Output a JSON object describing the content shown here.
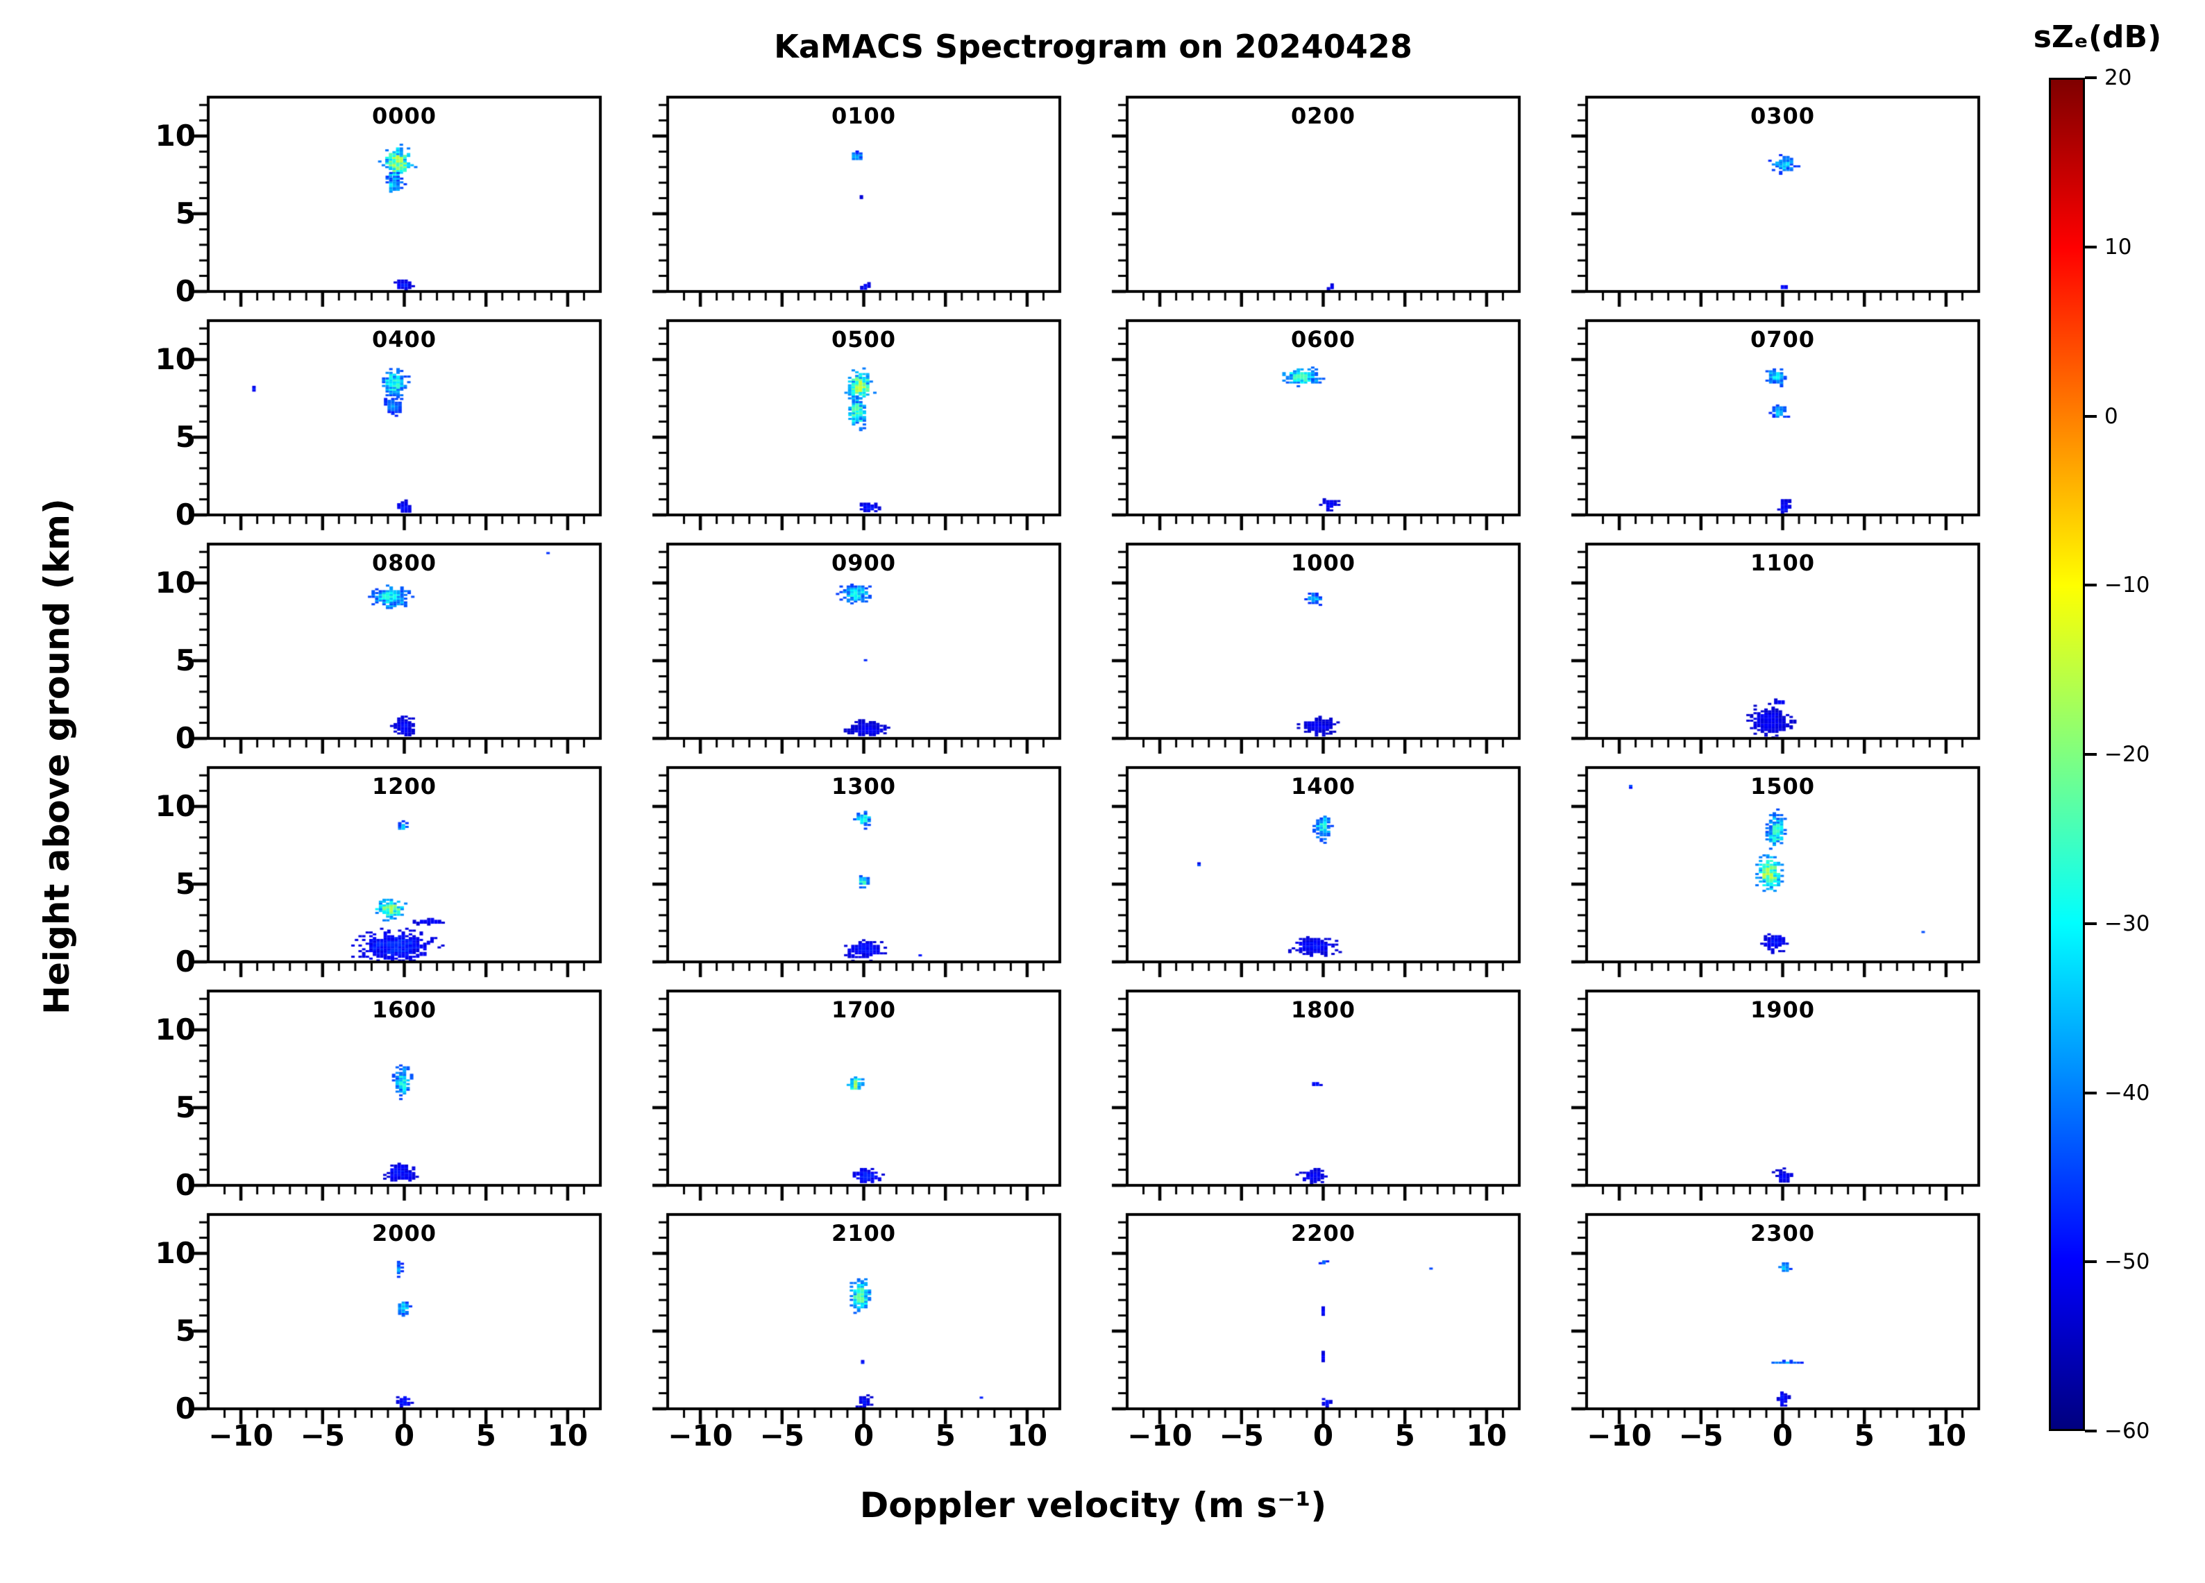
{
  "title": "KaMACS Spectrogram on 20240428",
  "axes": {
    "xlabel": "Doppler velocity (m s⁻¹)",
    "ylabel": "Height above ground (km)",
    "xlim": [
      -12,
      12
    ],
    "ylim": [
      0,
      12.5
    ],
    "xticks": [
      "−10",
      "−5",
      "0",
      "5",
      "10"
    ],
    "xtick_values": [
      -10,
      -5,
      0,
      5,
      10
    ],
    "xminor_step": 1,
    "yticks": [
      "10",
      "5",
      "0"
    ],
    "ytick_values": [
      10,
      5,
      0
    ],
    "yminor_step": 1
  },
  "colorbar": {
    "label": "sZₑ(dB)",
    "min": -60,
    "max": 20,
    "ticks": [
      "20",
      "10",
      "0",
      "−10",
      "−20",
      "−30",
      "−40",
      "−50",
      "−60"
    ],
    "tick_values": [
      20,
      10,
      0,
      -10,
      -20,
      -30,
      -40,
      -50,
      -60
    ],
    "colormap": "jet",
    "stops": [
      [
        0,
        "#00007f"
      ],
      [
        0.125,
        "#0000ff"
      ],
      [
        0.375,
        "#00ffff"
      ],
      [
        0.625,
        "#ffff00"
      ],
      [
        0.875,
        "#ff0000"
      ],
      [
        1,
        "#7f0000"
      ]
    ]
  },
  "chart_data": {
    "type": "heatmap",
    "grid": {
      "rows": 6,
      "cols": 4
    },
    "units": {
      "x": "m s⁻¹",
      "y": "km",
      "z": "dB"
    },
    "blob_format": [
      "velocity_center_ms",
      "height_center_km",
      "velocity_sigma_ms",
      "height_sigma_km",
      "peak_dB"
    ],
    "panels": [
      {
        "label": "0000",
        "blobs": [
          [
            -0.4,
            8.3,
            0.8,
            0.9,
            -15
          ],
          [
            -0.6,
            6.9,
            0.5,
            0.6,
            -30
          ],
          [
            0.0,
            0.4,
            0.45,
            0.3,
            -47
          ]
        ]
      },
      {
        "label": "0100",
        "blobs": [
          [
            -0.4,
            8.7,
            0.4,
            0.3,
            -36
          ],
          [
            -0.1,
            6.1,
            0.12,
            0.15,
            -50
          ],
          [
            0.1,
            0.3,
            0.3,
            0.22,
            -48
          ]
        ]
      },
      {
        "label": "0200",
        "blobs": [
          [
            0.5,
            0.25,
            0.28,
            0.18,
            -50
          ]
        ]
      },
      {
        "label": "0300",
        "blobs": [
          [
            0.1,
            8.2,
            0.7,
            0.45,
            -31
          ],
          [
            0.1,
            0.3,
            0.25,
            0.2,
            -48
          ]
        ]
      },
      {
        "label": "0400",
        "blobs": [
          [
            -0.6,
            8.5,
            0.7,
            0.8,
            -26
          ],
          [
            -0.7,
            7.0,
            0.5,
            0.5,
            -36
          ],
          [
            -9.2,
            8.1,
            0.1,
            0.1,
            -44
          ],
          [
            0.0,
            0.5,
            0.45,
            0.35,
            -48
          ]
        ]
      },
      {
        "label": "0500",
        "blobs": [
          [
            -0.2,
            8.3,
            0.7,
            0.8,
            -14
          ],
          [
            -0.4,
            6.6,
            0.5,
            0.9,
            -22
          ],
          [
            0.3,
            0.5,
            0.6,
            0.28,
            -48
          ]
        ]
      },
      {
        "label": "0600",
        "blobs": [
          [
            -1.3,
            8.9,
            1.1,
            0.5,
            -24
          ],
          [
            0.4,
            0.7,
            0.45,
            0.35,
            -49
          ]
        ]
      },
      {
        "label": "0700",
        "blobs": [
          [
            -0.4,
            8.9,
            0.55,
            0.5,
            -29
          ],
          [
            -0.2,
            6.6,
            0.45,
            0.4,
            -33
          ],
          [
            0.1,
            0.5,
            0.35,
            0.45,
            -48
          ]
        ]
      },
      {
        "label": "0800",
        "blobs": [
          [
            -0.8,
            9.1,
            1.0,
            0.65,
            -27
          ],
          [
            0.0,
            0.8,
            0.55,
            0.6,
            -48
          ],
          [
            8.8,
            11.9,
            0.1,
            0.1,
            -44
          ]
        ]
      },
      {
        "label": "0900",
        "blobs": [
          [
            -0.5,
            9.3,
            0.8,
            0.55,
            -27
          ],
          [
            0.0,
            5.0,
            0.15,
            0.15,
            -45
          ],
          [
            0.2,
            0.6,
            1.2,
            0.45,
            -50
          ]
        ]
      },
      {
        "label": "1000",
        "blobs": [
          [
            -0.5,
            9.0,
            0.45,
            0.35,
            -33
          ],
          [
            -0.3,
            0.8,
            0.95,
            0.55,
            -50
          ]
        ]
      },
      {
        "label": "1100",
        "blobs": [
          [
            -0.8,
            1.1,
            1.2,
            0.8,
            -50
          ],
          [
            -0.2,
            2.3,
            0.4,
            0.18,
            -49
          ]
        ]
      },
      {
        "label": "1200",
        "blobs": [
          [
            -0.1,
            8.7,
            0.28,
            0.28,
            -33
          ],
          [
            -0.9,
            3.4,
            0.85,
            0.55,
            -16
          ],
          [
            -0.5,
            1.0,
            2.1,
            0.85,
            -46
          ],
          [
            1.5,
            2.6,
            0.8,
            0.2,
            -48
          ]
        ]
      },
      {
        "label": "1300",
        "blobs": [
          [
            0.0,
            9.2,
            0.45,
            0.45,
            -27
          ],
          [
            0.0,
            5.2,
            0.28,
            0.35,
            -24
          ],
          [
            0.0,
            0.8,
            1.1,
            0.55,
            -48
          ],
          [
            3.5,
            0.4,
            0.12,
            0.1,
            -47
          ]
        ]
      },
      {
        "label": "1400",
        "blobs": [
          [
            0.0,
            8.7,
            0.45,
            0.8,
            -26
          ],
          [
            -7.6,
            6.2,
            0.1,
            0.1,
            -44
          ],
          [
            -0.5,
            1.0,
            1.2,
            0.55,
            -48
          ]
        ]
      },
      {
        "label": "1500",
        "blobs": [
          [
            -0.4,
            8.4,
            0.55,
            1.0,
            -25
          ],
          [
            -0.8,
            5.7,
            0.65,
            0.95,
            -15
          ],
          [
            -0.5,
            1.3,
            0.65,
            0.55,
            -48
          ],
          [
            -9.3,
            11.3,
            0.1,
            0.1,
            -44
          ],
          [
            8.6,
            1.9,
            0.1,
            0.1,
            -44
          ]
        ]
      },
      {
        "label": "1600",
        "blobs": [
          [
            -0.1,
            6.7,
            0.45,
            0.85,
            -26
          ],
          [
            -0.2,
            0.8,
            0.85,
            0.55,
            -48
          ]
        ]
      },
      {
        "label": "1700",
        "blobs": [
          [
            -0.5,
            6.5,
            0.4,
            0.4,
            -16
          ],
          [
            0.2,
            0.6,
            0.75,
            0.45,
            -47
          ]
        ]
      },
      {
        "label": "1800",
        "blobs": [
          [
            -0.4,
            6.5,
            0.28,
            0.13,
            -45
          ],
          [
            -0.6,
            0.6,
            0.75,
            0.45,
            -49
          ]
        ]
      },
      {
        "label": "1900",
        "blobs": [
          [
            0.1,
            0.6,
            0.5,
            0.38,
            -49
          ]
        ]
      },
      {
        "label": "2000",
        "blobs": [
          [
            -0.3,
            9.0,
            0.22,
            0.45,
            -35
          ],
          [
            -0.1,
            6.5,
            0.38,
            0.45,
            -29
          ],
          [
            0.0,
            0.5,
            0.38,
            0.38,
            -47
          ]
        ]
      },
      {
        "label": "2100",
        "blobs": [
          [
            -0.2,
            7.3,
            0.55,
            0.95,
            -21
          ],
          [
            0.0,
            3.0,
            0.13,
            0.13,
            -47
          ],
          [
            0.0,
            0.5,
            0.38,
            0.38,
            -48
          ],
          [
            7.2,
            0.7,
            0.1,
            0.1,
            -46
          ]
        ]
      },
      {
        "label": "2200",
        "blobs": [
          [
            0.0,
            9.4,
            0.28,
            0.18,
            -42
          ],
          [
            6.6,
            9.0,
            0.1,
            0.1,
            -44
          ],
          [
            0.0,
            6.3,
            0.1,
            0.28,
            -48
          ],
          [
            0.0,
            3.3,
            0.1,
            0.38,
            -50
          ],
          [
            0.2,
            0.4,
            0.28,
            0.28,
            -48
          ]
        ]
      },
      {
        "label": "2300",
        "blobs": [
          [
            0.1,
            9.1,
            0.32,
            0.32,
            -31
          ],
          [
            0.3,
            3.0,
            1.1,
            0.07,
            -34
          ],
          [
            0.0,
            0.6,
            0.32,
            0.45,
            -48
          ]
        ]
      }
    ]
  }
}
